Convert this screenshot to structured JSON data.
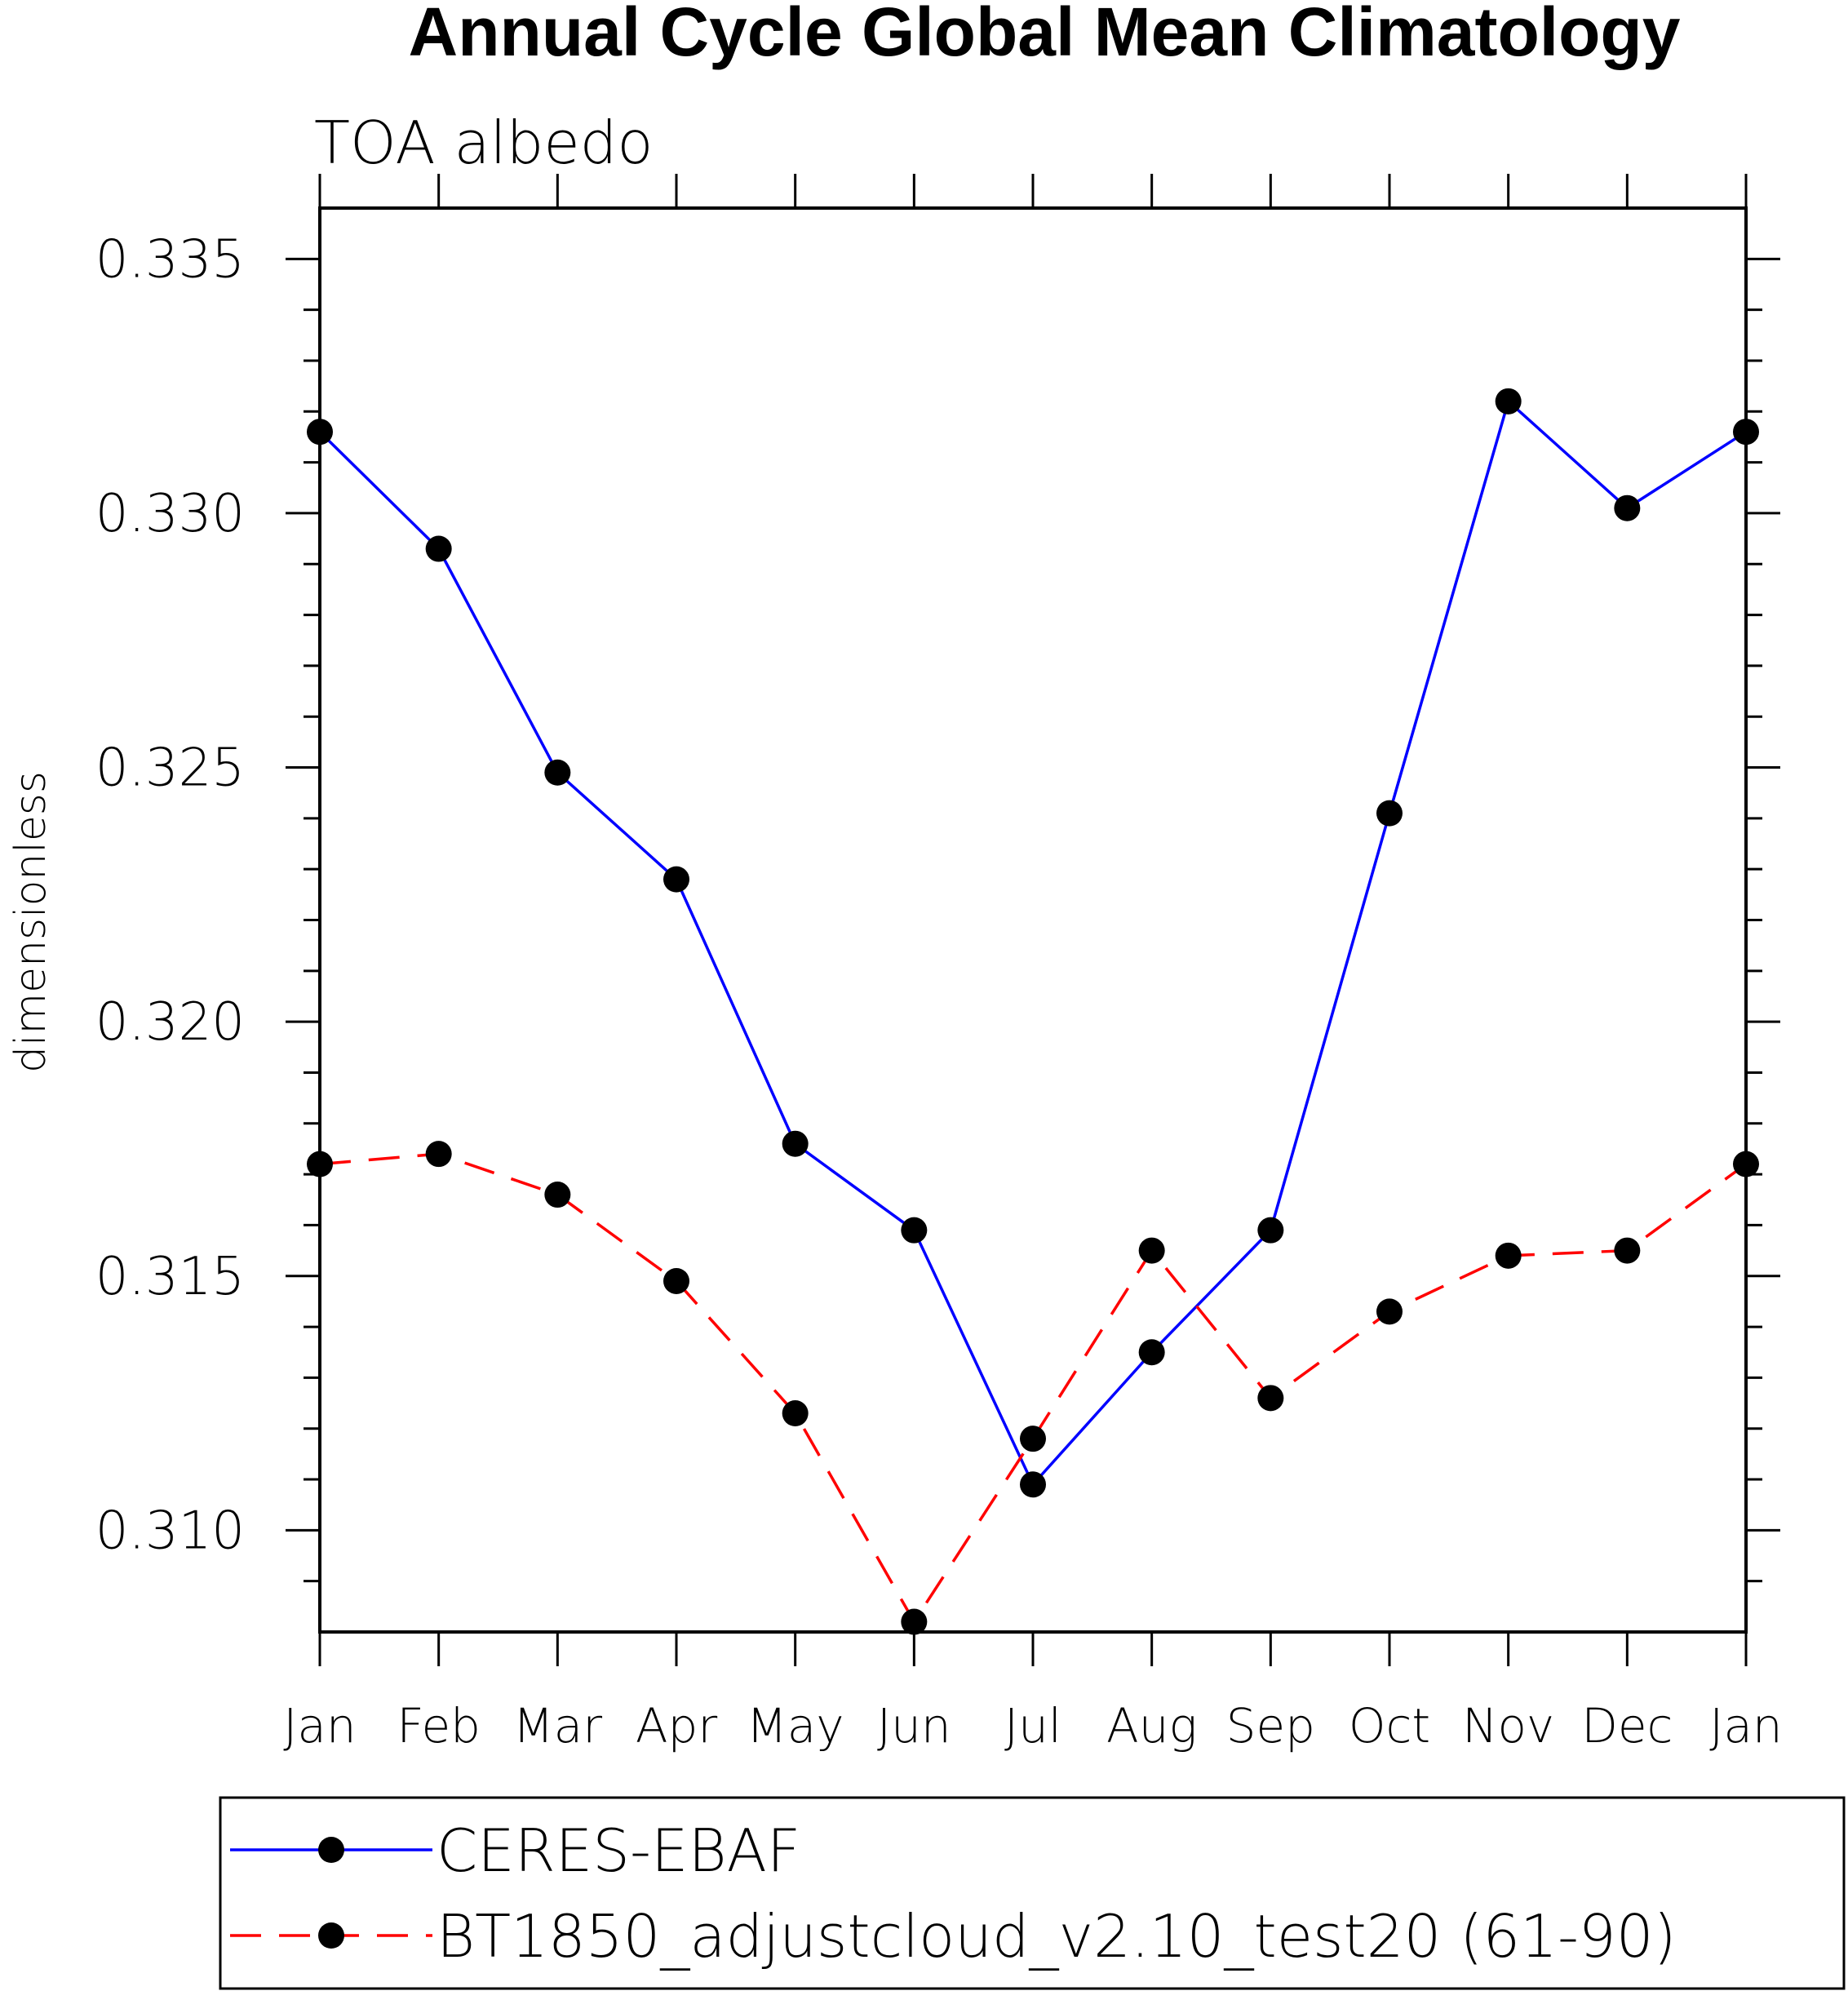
{
  "chart_data": {
    "type": "line",
    "title": "Annual Cycle Global Mean Climatology",
    "subtitle": "TOA albedo",
    "ylabel": "dimensionless",
    "xlabel": "",
    "categories": [
      "Jan",
      "Feb",
      "Mar",
      "Apr",
      "May",
      "Jun",
      "Jul",
      "Aug",
      "Sep",
      "Oct",
      "Nov",
      "Dec",
      "Jan"
    ],
    "ylim": [
      0.308,
      0.336
    ],
    "yticks": [
      "0.310",
      "0.315",
      "0.320",
      "0.325",
      "0.330",
      "0.335"
    ],
    "ytick_values": [
      0.31,
      0.315,
      0.32,
      0.325,
      0.33,
      0.335
    ],
    "grid": false,
    "legend_position": "bottom",
    "series": [
      {
        "name": "CERES-EBAF",
        "color": "#0000ff",
        "line_style": "solid",
        "marker": "filled-circle",
        "values": [
          0.3316,
          0.3293,
          0.3249,
          0.3228,
          0.3176,
          0.3159,
          0.3109,
          0.3135,
          0.3159,
          0.3241,
          0.3322,
          0.3301,
          0.3316
        ]
      },
      {
        "name": "BT1850_adjustcloud_v2.10_test20 (61-90)",
        "color": "#ff0000",
        "line_style": "dashed",
        "marker": "filled-circle",
        "values": [
          0.3172,
          0.3174,
          0.3166,
          0.3149,
          0.3123,
          0.3082,
          0.3118,
          0.3155,
          0.3126,
          0.3143,
          0.3154,
          0.3155,
          0.3172
        ]
      }
    ]
  }
}
